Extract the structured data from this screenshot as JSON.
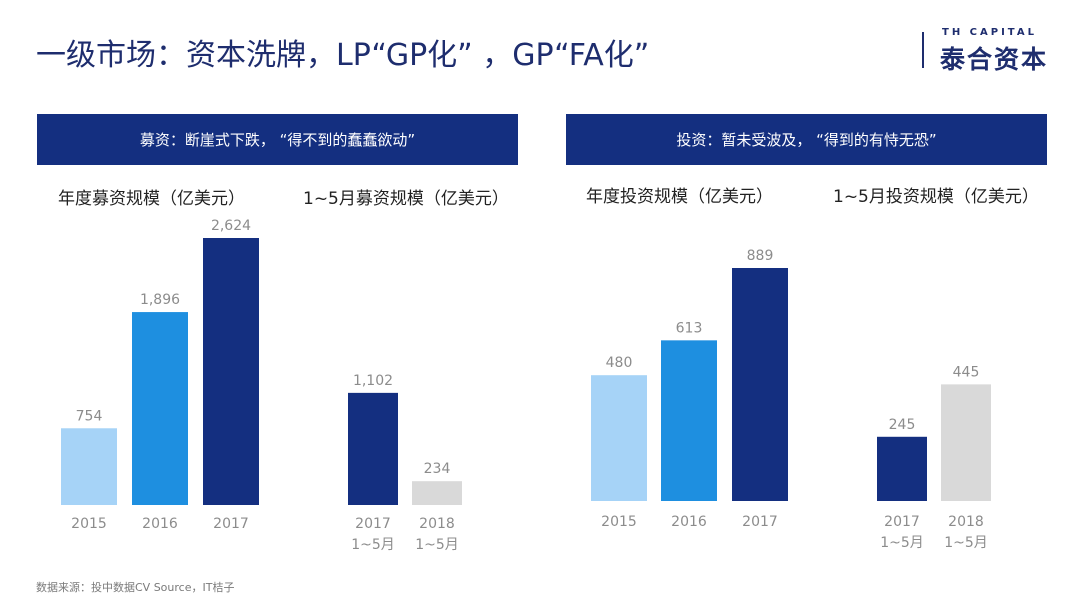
{
  "title": "一级市场：资本洗牌，LP“GP化” ，GP“FA化”",
  "logo": {
    "en": "TH CAPITAL",
    "cn": "泰合资本"
  },
  "colors": {
    "navy": "#142f80",
    "blue": "#1e8fe0",
    "light_blue": "#a6d3f7",
    "gray": "#d9d9d9",
    "value_text": "#8c8c8c",
    "tick_text": "#8c8c8c"
  },
  "left_banner": "募资：断崖式下跌， “得不到的蠢蠢欲动”",
  "right_banner": "投资：暂未受波及， “得到的有恃无恐”",
  "source": "数据来源：投中数据CV Source，IT桔子",
  "chart_data": [
    {
      "type": "bar",
      "title": "年度募资规模（亿美元）",
      "categories": [
        "2015",
        "2016",
        "2017"
      ],
      "values": [
        754,
        1896,
        2624
      ],
      "value_labels": [
        "754",
        "1,896",
        "2,624"
      ],
      "bar_colors": [
        "#a6d3f7",
        "#1e8fe0",
        "#142f80"
      ]
    },
    {
      "type": "bar",
      "title": "1~5月募资规模（亿美元）",
      "categories": [
        [
          "2017",
          "1~5月"
        ],
        [
          "2018",
          "1~5月"
        ]
      ],
      "values": [
        1102,
        234
      ],
      "value_labels": [
        "1,102",
        "234"
      ],
      "bar_colors": [
        "#142f80",
        "#d9d9d9"
      ]
    },
    {
      "type": "bar",
      "title": "年度投资规模（亿美元）",
      "categories": [
        "2015",
        "2016",
        "2017"
      ],
      "values": [
        480,
        613,
        889
      ],
      "value_labels": [
        "480",
        "613",
        "889"
      ],
      "bar_colors": [
        "#a6d3f7",
        "#1e8fe0",
        "#142f80"
      ]
    },
    {
      "type": "bar",
      "title": "1~5月投资规模（亿美元）",
      "categories": [
        [
          "2017",
          "1~5月"
        ],
        [
          "2018",
          "1~5月"
        ]
      ],
      "values": [
        245,
        445
      ],
      "value_labels": [
        "245",
        "445"
      ],
      "bar_colors": [
        "#142f80",
        "#d9d9d9"
      ]
    }
  ]
}
